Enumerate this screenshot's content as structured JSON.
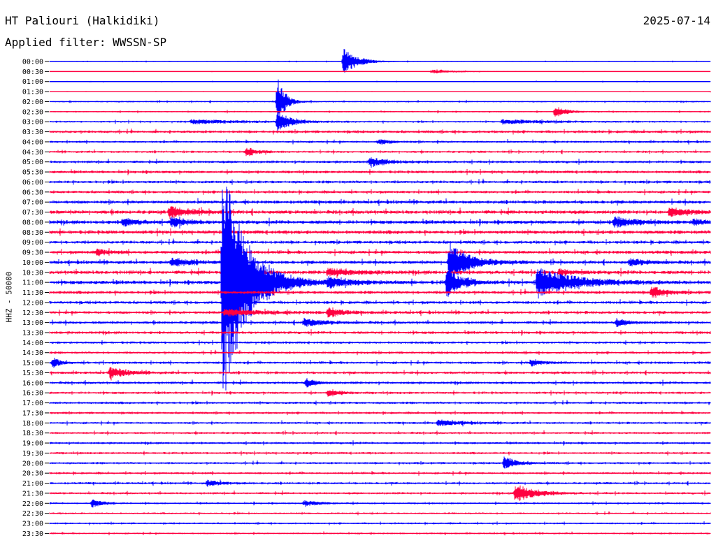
{
  "header": {
    "station": "HT Paliouri (Halkidiki)",
    "filter": "Applied filter: WWSSN-SP",
    "date": "2025-07-14"
  },
  "side_label": "HHZ - 50000",
  "colors": {
    "blue": "#0000ff",
    "red": "#ff0040",
    "text": "#000000"
  },
  "chart_data": {
    "type": "line",
    "title": "HT Paliouri (Halkidiki)",
    "subtitle": "Applied filter: WWSSN-SP",
    "ylabel": "HHZ - 50000",
    "date": "2025-07-14",
    "row_labels": [
      "00:00",
      "00:30",
      "01:00",
      "01:30",
      "02:00",
      "02:30",
      "03:00",
      "03:30",
      "04:00",
      "04:30",
      "05:00",
      "05:30",
      "06:00",
      "06:30",
      "07:00",
      "07:30",
      "08:00",
      "08:30",
      "09:00",
      "09:30",
      "10:00",
      "10:30",
      "11:00",
      "11:30",
      "12:00",
      "12:30",
      "13:00",
      "13:30",
      "14:00",
      "14:30",
      "15:00",
      "15:30",
      "16:00",
      "16:30",
      "17:00",
      "17:30",
      "18:00",
      "18:30",
      "19:00",
      "19:30",
      "20:00",
      "20:30",
      "21:00",
      "21:30",
      "22:00",
      "22:30",
      "23:00",
      "23:30"
    ],
    "trace_colors": [
      "#0000ff",
      "#ff0040"
    ],
    "minutes_per_row": 30,
    "noise_level": [
      0.5,
      0.3,
      0.5,
      0.3,
      0.8,
      0.8,
      1,
      1.5,
      1.2,
      1.2,
      1.4,
      1.5,
      1.5,
      1.5,
      1.8,
      2,
      2,
      2,
      1.7,
      1.8,
      1.8,
      2,
      2,
      1.7,
      1.6,
      1.6,
      1.5,
      1.5,
      1.3,
      1.3,
      1.4,
      1.4,
      1.4,
      1.3,
      1.3,
      1.2,
      1.2,
      1.2,
      1.2,
      1.2,
      1.2,
      1.2,
      1.2,
      1.2,
      1,
      1,
      1,
      0.9
    ],
    "events": [
      {
        "row": 0,
        "minute": 13.3,
        "amp": 20,
        "dur": 0.6
      },
      {
        "row": 1,
        "minute": 17.3,
        "amp": 3,
        "dur": 1.2
      },
      {
        "row": 3,
        "minute": 30,
        "amp": 3,
        "dur": 0.5
      },
      {
        "row": 4,
        "minute": 10.3,
        "amp": 45,
        "dur": 0.3
      },
      {
        "row": 6,
        "minute": 10.3,
        "amp": 15,
        "dur": 0.6
      },
      {
        "row": 5,
        "minute": 22.9,
        "amp": 8,
        "dur": 0.5
      },
      {
        "row": 6,
        "minute": 6.4,
        "amp": 3,
        "dur": 2
      },
      {
        "row": 6,
        "minute": 20.5,
        "amp": 3,
        "dur": 2
      },
      {
        "row": 7,
        "minute": 30.4,
        "amp": 8,
        "dur": 0.2
      },
      {
        "row": 8,
        "minute": 14.9,
        "amp": 4,
        "dur": 0.5
      },
      {
        "row": 9,
        "minute": 8.9,
        "amp": 8,
        "dur": 0.4
      },
      {
        "row": 10,
        "minute": 14.5,
        "amp": 6,
        "dur": 0.8
      },
      {
        "row": 14,
        "minute": 30.3,
        "amp": 6,
        "dur": 0.2
      },
      {
        "row": 15,
        "minute": 5.4,
        "amp": 8,
        "dur": 0.8
      },
      {
        "row": 15,
        "minute": 28.1,
        "amp": 6,
        "dur": 0.8
      },
      {
        "row": 16,
        "minute": 3.3,
        "amp": 6,
        "dur": 0.6
      },
      {
        "row": 16,
        "minute": 5.5,
        "amp": 7,
        "dur": 0.6
      },
      {
        "row": 16,
        "minute": 25.6,
        "amp": 8,
        "dur": 0.8
      },
      {
        "row": 16,
        "minute": 29.2,
        "amp": 5,
        "dur": 0.4
      },
      {
        "row": 19,
        "minute": 2.1,
        "amp": 5,
        "dur": 0.5
      },
      {
        "row": 20,
        "minute": 18.1,
        "amp": 30,
        "dur": 0.8
      },
      {
        "row": 20,
        "minute": 5.5,
        "amp": 6,
        "dur": 0.8
      },
      {
        "row": 20,
        "minute": 26.3,
        "amp": 5,
        "dur": 0.7
      },
      {
        "row": 20,
        "minute": 30.6,
        "amp": 7,
        "dur": 0.4
      },
      {
        "row": 21,
        "minute": 12.6,
        "amp": 6,
        "dur": 1
      },
      {
        "row": 21,
        "minute": 23.1,
        "amp": 5,
        "dur": 0.5
      },
      {
        "row": 22,
        "minute": 7.8,
        "amp": 190,
        "dur": 1
      },
      {
        "row": 22,
        "minute": 22.1,
        "amp": 22,
        "dur": 1.5
      },
      {
        "row": 22,
        "minute": 18,
        "amp": 30,
        "dur": 0.4
      },
      {
        "row": 22,
        "minute": 12.6,
        "amp": 6,
        "dur": 1
      },
      {
        "row": 22,
        "minute": 18.9,
        "amp": 5,
        "dur": 0.4
      },
      {
        "row": 23,
        "minute": 27.3,
        "amp": 10,
        "dur": 0.5
      },
      {
        "row": 25,
        "minute": 12.6,
        "amp": 8,
        "dur": 0.5
      },
      {
        "row": 25,
        "minute": 7.9,
        "amp": 5,
        "dur": 1.5
      },
      {
        "row": 26,
        "minute": 11.5,
        "amp": 6,
        "dur": 0.8
      },
      {
        "row": 26,
        "minute": 25.7,
        "amp": 5,
        "dur": 0.5
      },
      {
        "row": 29,
        "minute": 30.4,
        "amp": 6,
        "dur": 0.5
      },
      {
        "row": 30,
        "minute": 0.1,
        "amp": 8,
        "dur": 0.3
      },
      {
        "row": 30,
        "minute": 21.8,
        "amp": 5,
        "dur": 0.5
      },
      {
        "row": 31,
        "minute": 2.7,
        "amp": 8,
        "dur": 0.7
      },
      {
        "row": 32,
        "minute": 11.6,
        "amp": 6,
        "dur": 0.4
      },
      {
        "row": 33,
        "minute": 12.6,
        "amp": 5,
        "dur": 0.5
      },
      {
        "row": 36,
        "minute": 17.6,
        "amp": 4,
        "dur": 1
      },
      {
        "row": 40,
        "minute": 20.6,
        "amp": 10,
        "dur": 0.5
      },
      {
        "row": 42,
        "minute": 7.1,
        "amp": 4,
        "dur": 0.7
      },
      {
        "row": 43,
        "minute": 21.1,
        "amp": 14,
        "dur": 0.8
      },
      {
        "row": 44,
        "minute": 1.9,
        "amp": 7,
        "dur": 0.4
      },
      {
        "row": 44,
        "minute": 11.5,
        "amp": 4,
        "dur": 0.7
      }
    ]
  }
}
